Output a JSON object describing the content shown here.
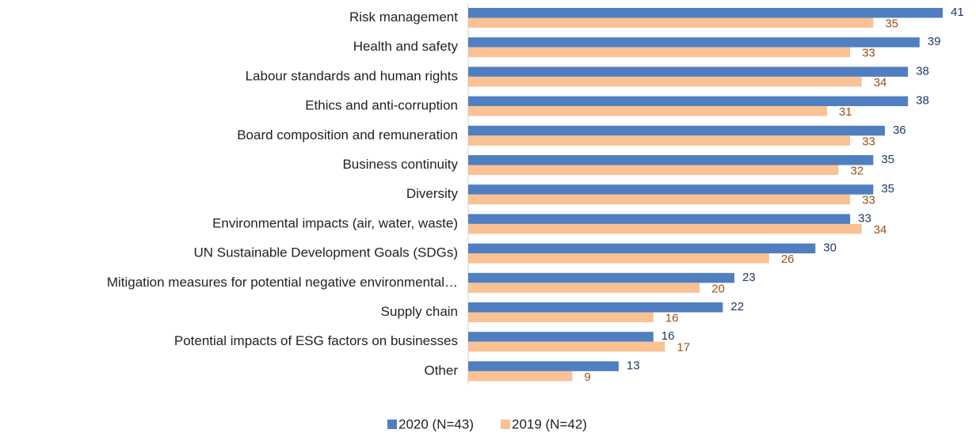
{
  "chart_data": {
    "type": "bar",
    "orientation": "horizontal",
    "categories": [
      "Risk management",
      "Health and safety",
      "Labour standards and human rights",
      "Ethics and anti-corruption",
      "Board composition and remuneration",
      "Business continuity",
      "Diversity",
      "Environmental impacts (air, water, waste)",
      "UN Sustainable Development Goals (SDGs)",
      "Mitigation measures for potential negative environmental…",
      "Supply chain",
      "Potential impacts of ESG factors on businesses",
      "Other"
    ],
    "series": [
      {
        "name": "2020 (N=43)",
        "color": "#4f7fc0",
        "label_color": "#1f3864",
        "values": [
          41,
          39,
          38,
          38,
          36,
          35,
          35,
          33,
          30,
          23,
          22,
          16,
          13
        ]
      },
      {
        "name": "2019 (N=42)",
        "color": "#f9c194",
        "label_color": "#9c4f12",
        "values": [
          35,
          33,
          34,
          31,
          33,
          32,
          33,
          34,
          26,
          20,
          16,
          17,
          9
        ]
      }
    ],
    "legend": "bottom"
  }
}
